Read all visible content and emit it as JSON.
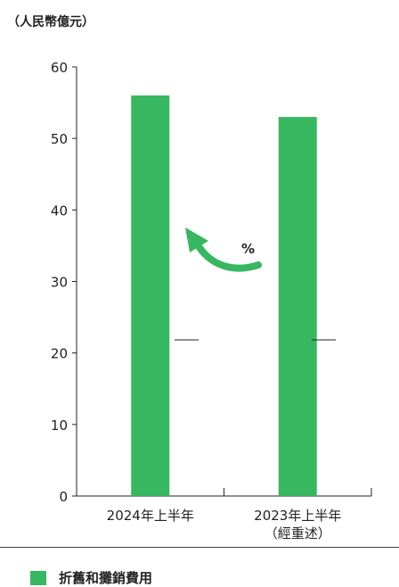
{
  "unit_label": "（人民幣億元）",
  "annotation_symbol": "%",
  "chart_data": {
    "type": "bar",
    "categories": [
      "2024年上半年",
      "2023年上半年"
    ],
    "category_sublabels": [
      "",
      "（經重述）"
    ],
    "series": [
      {
        "name": "折舊和攤銷費用",
        "values": [
          56,
          53
        ]
      }
    ],
    "ylim": [
      0,
      60
    ],
    "yticks": [
      0,
      10,
      20,
      30,
      40,
      50,
      60
    ],
    "color": "#36b760",
    "legend_placement": "bottom-left",
    "grid": false
  }
}
